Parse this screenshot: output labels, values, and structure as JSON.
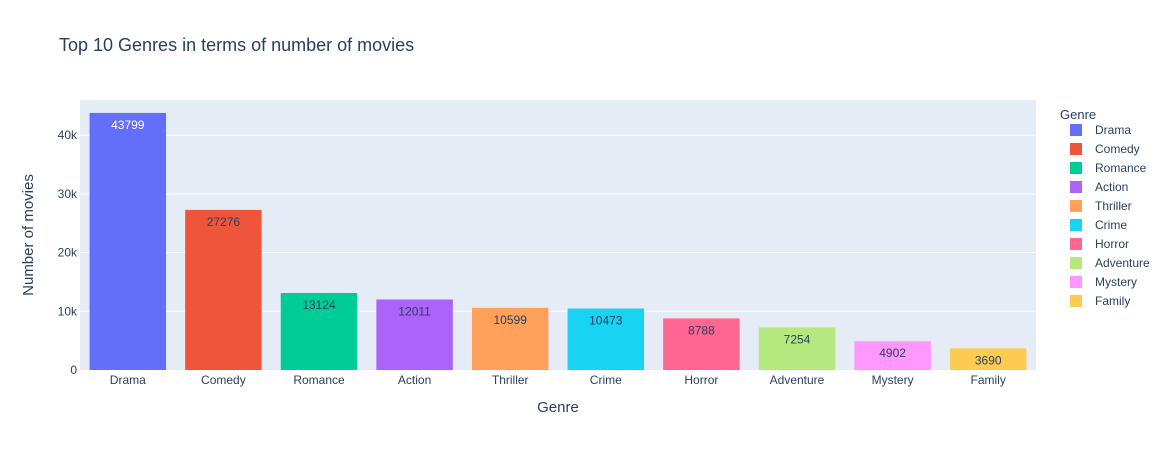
{
  "colors": {
    "plot_background": "#E5ECF6",
    "gridline": "#FFFFFF",
    "text": "#2A3F5F"
  },
  "chart_data": {
    "type": "bar",
    "title": "Top 10 Genres in terms of number of movies",
    "xlabel": "Genre",
    "ylabel": "Number of movies",
    "categories": [
      "Drama",
      "Comedy",
      "Romance",
      "Action",
      "Thriller",
      "Crime",
      "Horror",
      "Adventure",
      "Mystery",
      "Family"
    ],
    "values": [
      43799,
      27276,
      13124,
      12011,
      10599,
      10473,
      8788,
      7254,
      4902,
      3690
    ],
    "data_labels": [
      "43799",
      "27276",
      "13124",
      "12011",
      "10599",
      "10473",
      "8788",
      "7254",
      "4902",
      "3690"
    ],
    "colors": [
      "#636EFA",
      "#EF553B",
      "#00CC96",
      "#AB63FA",
      "#FFA15A",
      "#19D3F3",
      "#FF6692",
      "#B6E880",
      "#FF97FF",
      "#FECB52"
    ],
    "data_label_colors": [
      "#FFFFFF",
      "#2A3F5F",
      "#2A3F5F",
      "#2A3F5F",
      "#2A3F5F",
      "#2A3F5F",
      "#2A3F5F",
      "#2A3F5F",
      "#2A3F5F",
      "#2A3F5F"
    ],
    "ylim": [
      0,
      46000
    ],
    "yticks": [
      0,
      10000,
      20000,
      30000,
      40000
    ],
    "ytick_labels": [
      "0",
      "10k",
      "20k",
      "30k",
      "40k"
    ],
    "grid": true,
    "legend": {
      "title": "Genre",
      "placement": "right",
      "entries": [
        "Drama",
        "Comedy",
        "Romance",
        "Action",
        "Thriller",
        "Crime",
        "Horror",
        "Adventure",
        "Mystery",
        "Family"
      ]
    }
  }
}
